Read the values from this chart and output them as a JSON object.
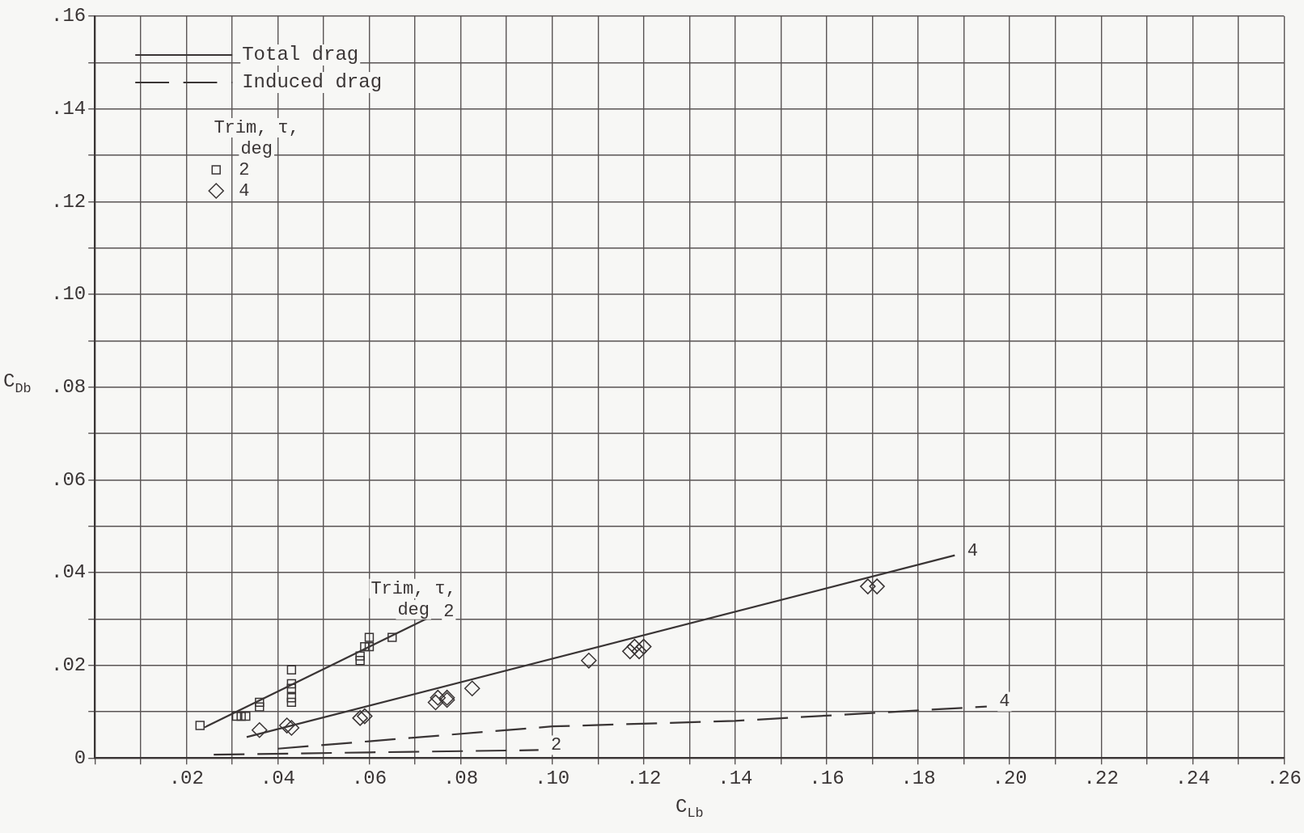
{
  "chart_data": {
    "type": "scatter",
    "xlabel": "C$_{Lb}$",
    "ylabel": "C$_{Db}$",
    "legend": "top left",
    "legend_title": "Trim, τ,\ndeg",
    "grid": true,
    "xlim": [
      0,
      0.26
    ],
    "ylim": [
      0,
      0.16
    ],
    "xticks": [
      {
        "value": 0,
        "label": null
      },
      {
        "value": 0.01,
        "label": null
      },
      {
        "value": 0.02,
        "label": ".02"
      },
      {
        "value": 0.03,
        "label": null
      },
      {
        "value": 0.04,
        "label": ".04"
      },
      {
        "value": 0.05,
        "label": null
      },
      {
        "value": 0.06,
        "label": ".06"
      },
      {
        "value": 0.07,
        "label": null
      },
      {
        "value": 0.08,
        "label": ".08"
      },
      {
        "value": 0.09,
        "label": null
      },
      {
        "value": 0.1,
        "label": ".10"
      },
      {
        "value": 0.11,
        "label": null
      },
      {
        "value": 0.12,
        "label": ".12"
      },
      {
        "value": 0.13,
        "label": null
      },
      {
        "value": 0.14,
        "label": ".14"
      },
      {
        "value": 0.15,
        "label": null
      },
      {
        "value": 0.16,
        "label": ".16"
      },
      {
        "value": 0.17,
        "label": null
      },
      {
        "value": 0.18,
        "label": ".18"
      },
      {
        "value": 0.19,
        "label": null
      },
      {
        "value": 0.2,
        "label": ".20"
      },
      {
        "value": 0.21,
        "label": null
      },
      {
        "value": 0.22,
        "label": ".22"
      },
      {
        "value": 0.23,
        "label": null
      },
      {
        "value": 0.24,
        "label": ".24"
      },
      {
        "value": 0.25,
        "label": null
      },
      {
        "value": 0.26,
        "label": ".26"
      }
    ],
    "yticks": [
      0,
      {
        "value": 0.01,
        "label": null
      },
      {
        "value": 0.02,
        "label": ".02"
      },
      {
        "value": 0.03,
        "label": null
      },
      {
        "value": 0.04,
        "label": ".04"
      },
      {
        "value": 0.05,
        "label": null
      },
      {
        "value": 0.06,
        "label": ".06"
      },
      {
        "value": 0.07,
        "label": null
      },
      {
        "value": 0.08,
        "label": ".08"
      },
      {
        "value": 0.09,
        "label": null
      },
      {
        "value": 0.1,
        "label": ".10"
      },
      {
        "value": 0.11,
        "label": null
      },
      {
        "value": 0.12,
        "label": ".12"
      },
      {
        "value": 0.13,
        "label": null
      },
      {
        "value": 0.14,
        "label": ".14"
      },
      {
        "value": 0.15,
        "label": null
      },
      {
        "value": 0.16,
        "label": ".16"
      }
    ],
    "series": [
      {
        "name": "Total drag",
        "type": "line",
        "line_style": "solid",
        "color": "#3a3535",
        "x": [
          0.024,
          0.0735
        ],
        "values": [
          0.0066,
          0.0305
        ]
      },
      {
        "type": "line",
        "line_style": "solid",
        "color": "#3a3535",
        "x": [
          0.0332,
          0.188
        ],
        "values": [
          0.0045,
          0.0437
        ]
      },
      {
        "name": "Induced drag",
        "type": "line",
        "line_style": "dashed",
        "color": "#3a3535",
        "x": [
          0.026,
          0.06,
          0.097
        ],
        "values": [
          0.0007,
          0.0012,
          0.0017
        ]
      },
      {
        "type": "line",
        "line_style": "dashed",
        "color": "#3a3535",
        "x": [
          0.04,
          0.06,
          0.1,
          0.14,
          0.195
        ],
        "values": [
          0.002,
          0.0036,
          0.0068,
          0.008,
          0.0111
        ]
      },
      {
        "name": "2",
        "marker": "square",
        "color": "#3a3535",
        "x": [
          0.023,
          0.031,
          0.032,
          0.033,
          0.036,
          0.036,
          0.043,
          0.043,
          0.043,
          0.043,
          0.043,
          0.058,
          0.058,
          0.059,
          0.06,
          0.06,
          0.065
        ],
        "values": [
          0.007,
          0.009,
          0.009,
          0.009,
          0.011,
          0.012,
          0.019,
          0.015,
          0.016,
          0.013,
          0.012,
          0.021,
          0.022,
          0.024,
          0.024,
          0.026,
          0.026
        ]
      },
      {
        "name": "4",
        "marker": "diamond",
        "color": "#3a3535",
        "x": [
          0.036,
          0.042,
          0.043,
          0.058,
          0.059,
          0.0745,
          0.075,
          0.077,
          0.077,
          0.0825,
          0.108,
          0.117,
          0.118,
          0.119,
          0.12,
          0.169,
          0.171
        ],
        "values": [
          0.006,
          0.007,
          0.0065,
          0.0086,
          0.009,
          0.012,
          0.013,
          0.013,
          0.0125,
          0.015,
          0.021,
          0.023,
          0.024,
          0.023,
          0.024,
          0.037,
          0.037
        ]
      }
    ],
    "annotations": [
      "Trim, τ,\ndeg",
      {
        "text": "2",
        "x": 0.0735,
        "y": 0.0305
      },
      {
        "text": "4",
        "x": 0.188,
        "y": 0.0437
      },
      {
        "text": "4",
        "x": 0.195,
        "y": 0.0111
      },
      {
        "text": "2",
        "x": 0.097,
        "y": 0.0017
      }
    ]
  }
}
